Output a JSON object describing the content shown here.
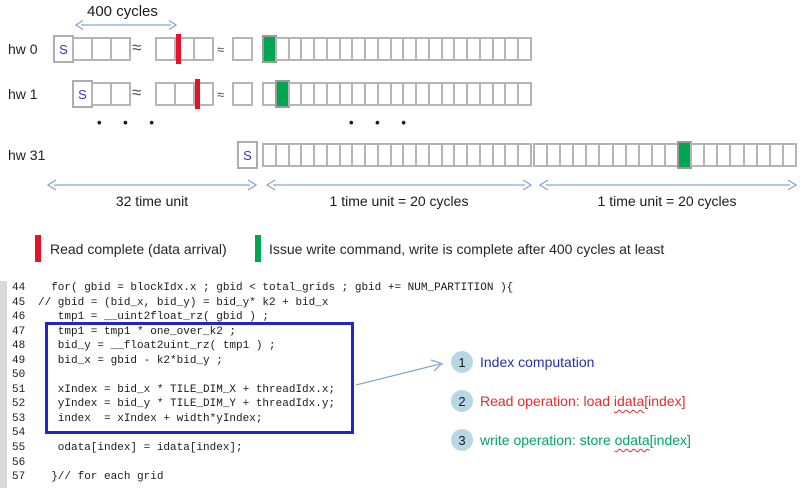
{
  "diagram": {
    "cycles_label": "400 cycles",
    "approx_symbol": "≈",
    "dots": "• • •",
    "rows": [
      {
        "label": "hw 0",
        "s_label": "S",
        "lead_cells": 3,
        "mid_cells": 3,
        "red_boundary": 1,
        "tail_cells": 1,
        "long_cells": 21,
        "long_green_index": 0
      },
      {
        "label": "hw 1",
        "s_label": "S",
        "lead_cells": 2,
        "mid_cells": 3,
        "red_boundary": 2,
        "tail_cells": 1,
        "long_cells": 21,
        "long_green_index": 1
      },
      {
        "label": "hw 31",
        "s_label": "S",
        "long_cells": 21,
        "long_green_index": -1,
        "long2_cells": 20,
        "long2_green_index": 11
      }
    ],
    "axis_labels": [
      "32 time unit",
      "1 time unit = 20 cycles",
      "1 time unit = 20 cycles"
    ],
    "colors": {
      "read_marker": "#e8112d",
      "write_marker": "#00a651",
      "box_border": "#b5b5b5",
      "arrow": "#84a7cf",
      "highlight_box": "#2424c8"
    },
    "legend": [
      {
        "color": "#e8112d",
        "text": "Read complete (data arrival)"
      },
      {
        "color": "#00a651",
        "text": "Issue write command, write is complete after 400 cycles at least"
      }
    ]
  },
  "code": {
    "lines": [
      {
        "num": "44",
        "text": "  for( gbid = blockIdx.x ; gbid < total_grids ; gbid += NUM_PARTITION ){"
      },
      {
        "num": "45",
        "text": "// gbid = (bid_x, bid_y) = bid_y* k2 + bid_x"
      },
      {
        "num": "46",
        "text": "   tmp1 = __uint2float_rz( gbid ) ;"
      },
      {
        "num": "47",
        "text": "   tmp1 = tmp1 * one_over_k2 ;"
      },
      {
        "num": "48",
        "text": "   bid_y = __float2uint_rz( tmp1 ) ;"
      },
      {
        "num": "49",
        "text": "   bid_x = gbid - k2*bid_y ;"
      },
      {
        "num": "50",
        "text": ""
      },
      {
        "num": "51",
        "text": "   xIndex = bid_x * TILE_DIM_X + threadIdx.x;"
      },
      {
        "num": "52",
        "text": "   yIndex = bid_y * TILE_DIM_Y + threadIdx.y;"
      },
      {
        "num": "53",
        "text": "   index  = xIndex + width*yIndex;"
      },
      {
        "num": "54",
        "text": ""
      },
      {
        "num": "55",
        "text": "   odata[index] = idata[index];"
      },
      {
        "num": "56",
        "text": ""
      },
      {
        "num": "57",
        "text": "  }// for each grid"
      }
    ]
  },
  "annotations": [
    {
      "num": "1",
      "prefix": "Index computation",
      "word": "",
      "suffix": "",
      "color": "#2d2da8"
    },
    {
      "num": "2",
      "prefix": "Read operation: load ",
      "word": "idata",
      "suffix": "[index]",
      "color": "#e32b2b"
    },
    {
      "num": "3",
      "prefix": "write operation: store ",
      "word": "odata",
      "suffix": "[index]",
      "color": "#00a561"
    }
  ]
}
